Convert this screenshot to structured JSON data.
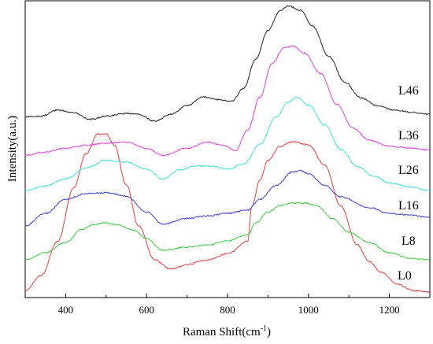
{
  "chart_data": {
    "type": "line",
    "xlabel": "Raman Shift(cm",
    "xlabel_sup": "-1",
    "xlabel_close": ")",
    "ylabel": "Intensity(a.u.)",
    "xlim": [
      300,
      1300
    ],
    "x_ticks": [
      400,
      600,
      800,
      1000,
      1200
    ],
    "x_tick_labels": [
      "400",
      "600",
      "800",
      "1000",
      "1200"
    ],
    "y_ticks_shown": false,
    "series": [
      {
        "name": "L0",
        "color": "#e04040",
        "points": [
          [
            300,
            0.03
          ],
          [
            340,
            0.13
          ],
          [
            380,
            0.35
          ],
          [
            420,
            0.7
          ],
          [
            450,
            0.92
          ],
          [
            480,
            1.05
          ],
          [
            500,
            1.05
          ],
          [
            520,
            0.98
          ],
          [
            550,
            0.72
          ],
          [
            580,
            0.45
          ],
          [
            620,
            0.23
          ],
          [
            660,
            0.17
          ],
          [
            700,
            0.2
          ],
          [
            750,
            0.23
          ],
          [
            800,
            0.27
          ],
          [
            850,
            0.35
          ],
          [
            860,
            0.58
          ],
          [
            880,
            0.75
          ],
          [
            900,
            0.88
          ],
          [
            930,
            0.97
          ],
          [
            960,
            1.0
          ],
          [
            1000,
            0.98
          ],
          [
            1040,
            0.85
          ],
          [
            1080,
            0.58
          ],
          [
            1120,
            0.33
          ],
          [
            1150,
            0.22
          ],
          [
            1180,
            0.15
          ],
          [
            1220,
            0.07
          ],
          [
            1260,
            0.03
          ],
          [
            1300,
            0.02
          ]
        ]
      },
      {
        "name": "L8",
        "color": "#40cc40",
        "points": [
          [
            300,
            0.03
          ],
          [
            350,
            0.12
          ],
          [
            400,
            0.25
          ],
          [
            440,
            0.42
          ],
          [
            470,
            0.48
          ],
          [
            500,
            0.5
          ],
          [
            530,
            0.47
          ],
          [
            570,
            0.4
          ],
          [
            600,
            0.3
          ],
          [
            640,
            0.15
          ],
          [
            700,
            0.19
          ],
          [
            750,
            0.22
          ],
          [
            800,
            0.27
          ],
          [
            850,
            0.35
          ],
          [
            870,
            0.5
          ],
          [
            900,
            0.64
          ],
          [
            930,
            0.72
          ],
          [
            960,
            0.75
          ],
          [
            990,
            0.75
          ],
          [
            1020,
            0.72
          ],
          [
            1060,
            0.55
          ],
          [
            1100,
            0.38
          ],
          [
            1150,
            0.25
          ],
          [
            1200,
            0.12
          ],
          [
            1250,
            0.05
          ],
          [
            1300,
            0.03
          ]
        ]
      },
      {
        "name": "L16",
        "color": "#4040cc",
        "points": [
          [
            300,
            0.03
          ],
          [
            350,
            0.18
          ],
          [
            400,
            0.35
          ],
          [
            450,
            0.42
          ],
          [
            500,
            0.43
          ],
          [
            550,
            0.39
          ],
          [
            600,
            0.2
          ],
          [
            640,
            0.05
          ],
          [
            700,
            0.12
          ],
          [
            750,
            0.15
          ],
          [
            800,
            0.18
          ],
          [
            850,
            0.22
          ],
          [
            880,
            0.35
          ],
          [
            920,
            0.52
          ],
          [
            960,
            0.68
          ],
          [
            980,
            0.7
          ],
          [
            1000,
            0.66
          ],
          [
            1040,
            0.52
          ],
          [
            1080,
            0.38
          ],
          [
            1150,
            0.25
          ],
          [
            1200,
            0.18
          ],
          [
            1250,
            0.16
          ],
          [
            1300,
            0.13
          ]
        ]
      },
      {
        "name": "L26",
        "color": "#40e0e0",
        "points": [
          [
            300,
            0.15
          ],
          [
            350,
            0.2
          ],
          [
            400,
            0.27
          ],
          [
            450,
            0.38
          ],
          [
            500,
            0.46
          ],
          [
            550,
            0.44
          ],
          [
            600,
            0.37
          ],
          [
            640,
            0.27
          ],
          [
            680,
            0.36
          ],
          [
            720,
            0.4
          ],
          [
            760,
            0.4
          ],
          [
            800,
            0.37
          ],
          [
            840,
            0.42
          ],
          [
            880,
            0.62
          ],
          [
            920,
            0.9
          ],
          [
            950,
            1.05
          ],
          [
            970,
            1.1
          ],
          [
            1000,
            1.02
          ],
          [
            1040,
            0.82
          ],
          [
            1080,
            0.57
          ],
          [
            1120,
            0.4
          ],
          [
            1160,
            0.3
          ],
          [
            1200,
            0.23
          ],
          [
            1250,
            0.19
          ],
          [
            1300,
            0.15
          ]
        ]
      },
      {
        "name": "L36",
        "color": "#e040e0",
        "points": [
          [
            300,
            0.15
          ],
          [
            340,
            0.18
          ],
          [
            400,
            0.22
          ],
          [
            450,
            0.25
          ],
          [
            500,
            0.27
          ],
          [
            550,
            0.28
          ],
          [
            600,
            0.22
          ],
          [
            640,
            0.15
          ],
          [
            700,
            0.22
          ],
          [
            750,
            0.28
          ],
          [
            790,
            0.25
          ],
          [
            820,
            0.2
          ],
          [
            850,
            0.4
          ],
          [
            880,
            0.72
          ],
          [
            910,
            1.05
          ],
          [
            940,
            1.2
          ],
          [
            960,
            1.22
          ],
          [
            990,
            1.15
          ],
          [
            1030,
            0.95
          ],
          [
            1070,
            0.65
          ],
          [
            1110,
            0.42
          ],
          [
            1150,
            0.3
          ],
          [
            1200,
            0.24
          ],
          [
            1260,
            0.22
          ],
          [
            1300,
            0.2
          ]
        ]
      },
      {
        "name": "L46",
        "color": "#202020",
        "points": [
          [
            300,
            0.05
          ],
          [
            340,
            0.06
          ],
          [
            380,
            0.13
          ],
          [
            420,
            0.1
          ],
          [
            460,
            0.02
          ],
          [
            500,
            0.06
          ],
          [
            550,
            0.09
          ],
          [
            580,
            0.08
          ],
          [
            620,
            0.0
          ],
          [
            660,
            0.08
          ],
          [
            700,
            0.18
          ],
          [
            740,
            0.28
          ],
          [
            780,
            0.25
          ],
          [
            810,
            0.23
          ],
          [
            840,
            0.38
          ],
          [
            870,
            0.72
          ],
          [
            900,
            1.05
          ],
          [
            930,
            1.28
          ],
          [
            950,
            1.33
          ],
          [
            980,
            1.28
          ],
          [
            1010,
            1.1
          ],
          [
            1050,
            0.75
          ],
          [
            1090,
            0.45
          ],
          [
            1130,
            0.27
          ],
          [
            1170,
            0.18
          ],
          [
            1210,
            0.13
          ],
          [
            1260,
            0.1
          ],
          [
            1300,
            0.08
          ]
        ]
      }
    ],
    "legend": "none; series names printed next to curves on the right"
  }
}
